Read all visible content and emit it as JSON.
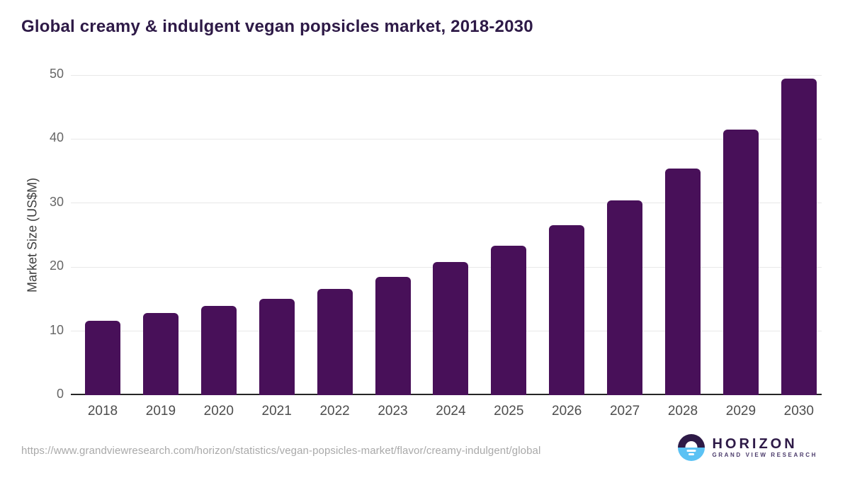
{
  "title": "Global creamy & indulgent vegan popsicles market, 2018-2030",
  "source_url": "https://www.grandviewresearch.com/horizon/statistics/vegan-popsicles-market/flavor/creamy-indulgent/global",
  "logo": {
    "name": "HORIZON",
    "tagline": "GRAND VIEW RESEARCH"
  },
  "colors": {
    "bar": "#481059",
    "title": "#2e1a47",
    "gridline": "#e8e8e8",
    "axis_line": "#262626",
    "y_tick": "#666666",
    "x_tick": "#4d4d4d",
    "source": "#a9a9a9",
    "logo_purple": "#2e1a47",
    "logo_blue": "#5bc2f4"
  },
  "chart_data": {
    "type": "bar",
    "title": "Global creamy & indulgent vegan popsicles market, 2018-2030",
    "categories": [
      "2018",
      "2019",
      "2020",
      "2021",
      "2022",
      "2023",
      "2024",
      "2025",
      "2026",
      "2027",
      "2028",
      "2029",
      "2030"
    ],
    "values": [
      11.6,
      12.8,
      13.9,
      15.1,
      16.6,
      18.5,
      20.8,
      23.3,
      26.5,
      30.4,
      35.4,
      41.5,
      49.5
    ],
    "xlabel": "",
    "ylabel": "Market Size (US$M)",
    "ylim": [
      0,
      50
    ],
    "yticks": [
      0,
      10,
      20,
      30,
      40,
      50
    ],
    "grid": "horizontal",
    "legend": "none",
    "bar_color": "#481059"
  }
}
